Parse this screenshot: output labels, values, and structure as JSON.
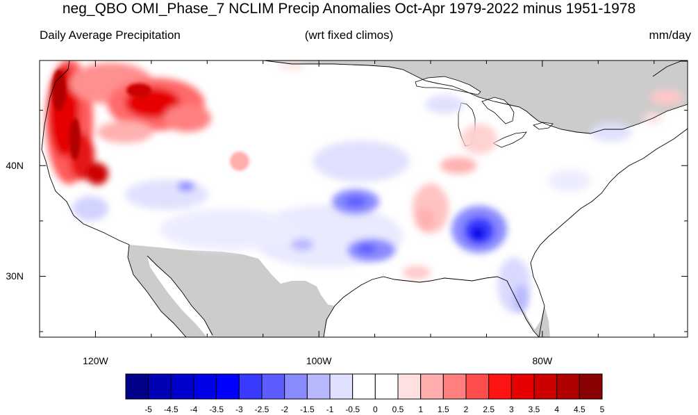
{
  "title": "neg_QBO OMI_Phase_7 NCLIM Precip Anomalies Oct-Apr 1979-2022 minus 1951-1978",
  "subtitle_left": "Daily Average Precipitation",
  "subtitle_center": "(wrt fixed climos)",
  "subtitle_right": "mm/day",
  "map": {
    "lon_range": [
      -125,
      -67
    ],
    "lat_range": [
      24.5,
      49.5
    ],
    "lon_ticks": [
      {
        "value": -120,
        "label": "120W"
      },
      {
        "value": -100,
        "label": "100W"
      },
      {
        "value": -80,
        "label": "80W"
      }
    ],
    "lat_ticks": [
      {
        "value": 40,
        "label": "40N"
      },
      {
        "value": 30,
        "label": "30N"
      }
    ],
    "colors": {
      "land_missing": "#cccccc",
      "coast": "#000000",
      "background": "#ffffff"
    }
  },
  "colorbar": {
    "labels": [
      "-5",
      "-4.5",
      "-4",
      "-3.5",
      "-3",
      "-2.5",
      "-2",
      "-1.5",
      "-1",
      "-0.5",
      "0",
      "0.5",
      "1",
      "1.5",
      "2",
      "2.5",
      "3",
      "3.5",
      "4",
      "4.5",
      "5"
    ],
    "colors": [
      "#00008b",
      "#0000b5",
      "#0000cd",
      "#0000e6",
      "#0000ff",
      "#3a3aff",
      "#5c5cff",
      "#8a8aff",
      "#b8b8ff",
      "#e0e0ff",
      "#ffffff",
      "#ffffff",
      "#ffe0e0",
      "#ffadad",
      "#ff7f7f",
      "#ff4c4c",
      "#ff1414",
      "#e60000",
      "#cc0000",
      "#b00000",
      "#8b0000"
    ]
  }
}
